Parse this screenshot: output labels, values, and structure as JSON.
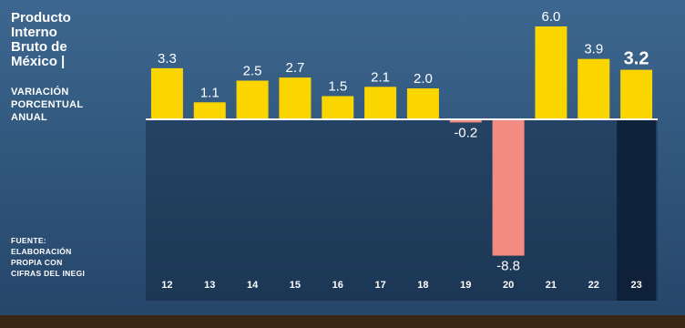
{
  "title_lines": [
    "Producto",
    "Interno",
    "Bruto de",
    "México |"
  ],
  "subtitle_lines": [
    "VARIACIÓN",
    "PORCENTUAL",
    "ANUAL"
  ],
  "source_lines": [
    "FUENTE:",
    "ELABORACIÓN",
    "PROPIA CON",
    "CIFRAS DEL INEGI"
  ],
  "colors": {
    "positive": "#fbd500",
    "negative": "#f28b82",
    "axis": "#ffffff",
    "label": "#ffffff",
    "highlight_band": "#0d2038"
  },
  "chart_data": {
    "type": "bar",
    "categories": [
      "12",
      "13",
      "14",
      "15",
      "16",
      "17",
      "18",
      "19",
      "20",
      "21",
      "22",
      "23"
    ],
    "values": [
      3.3,
      1.1,
      2.5,
      2.7,
      1.5,
      2.1,
      2.0,
      -0.2,
      -8.8,
      6.0,
      3.9,
      3.2
    ],
    "value_labels": [
      "3.3",
      "1.1",
      "2.5",
      "2.7",
      "1.5",
      "2.1",
      "2.0",
      "-0.2",
      "-8.8",
      "6.0",
      "3.9",
      "3.2"
    ],
    "highlighted_category": "23",
    "title": "Producto Interno Bruto de México | VARIACIÓN PORCENTUAL ANUAL",
    "ylim": [
      -9.5,
      6.5
    ],
    "grid": false,
    "legend": "none"
  }
}
